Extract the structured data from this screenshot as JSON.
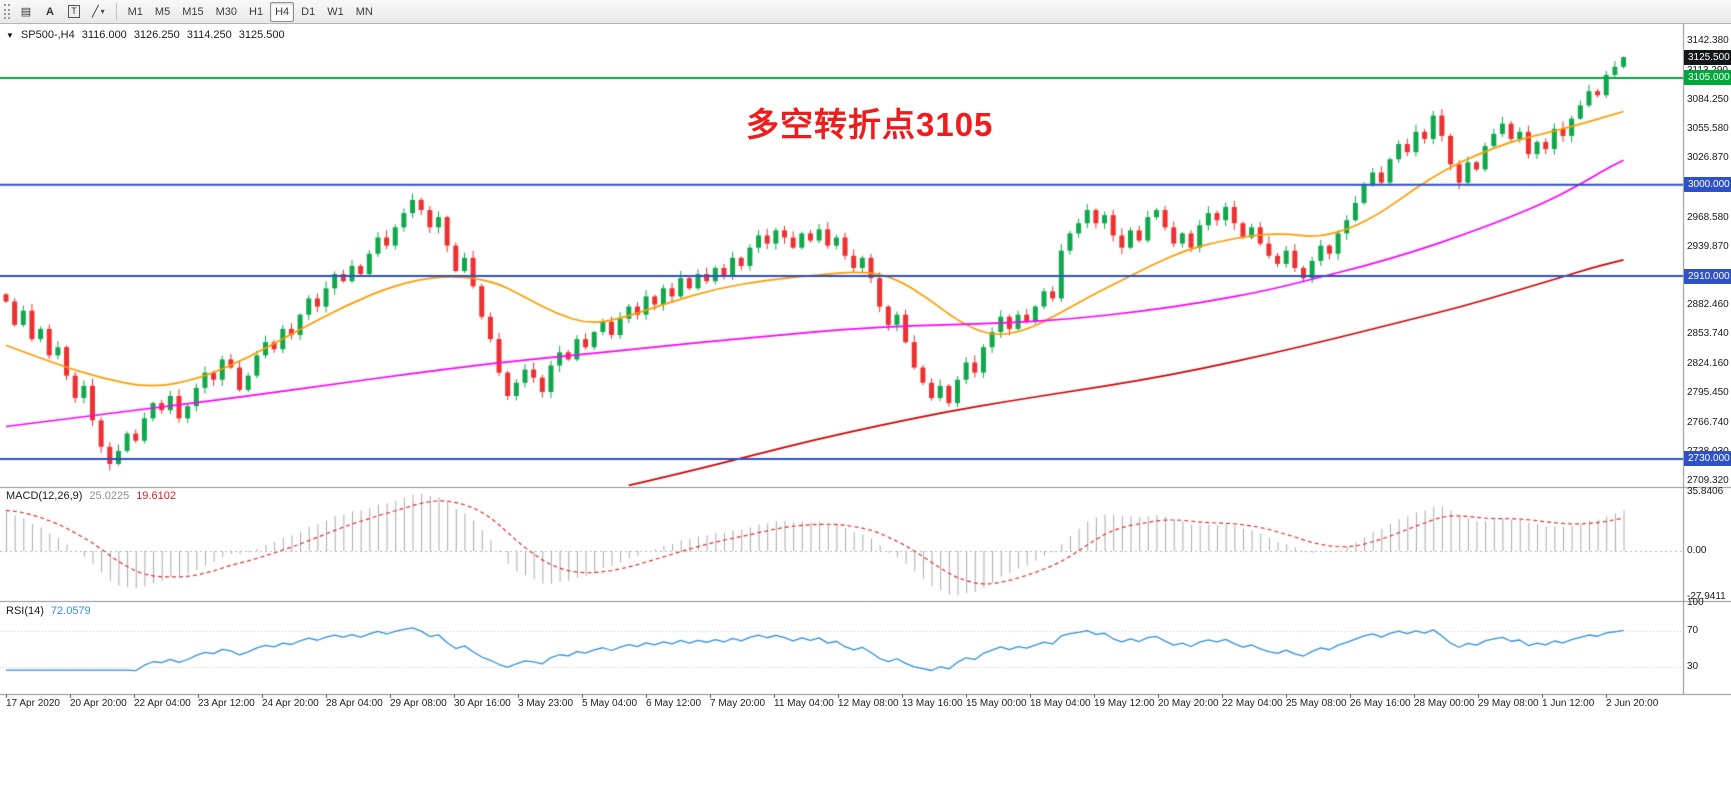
{
  "toolbar": {
    "tools": [
      {
        "name": "chart-grid",
        "glyph": "▤"
      },
      {
        "name": "cursor-tool",
        "glyph": "A"
      },
      {
        "name": "text-tool",
        "glyph": "T"
      },
      {
        "name": "line-tools",
        "glyph": "╱"
      },
      {
        "name": "line-tools-dropdown",
        "glyph": "▾"
      }
    ],
    "timeframes": [
      "M1",
      "M5",
      "M15",
      "M30",
      "H1",
      "H4",
      "D1",
      "W1",
      "MN"
    ],
    "active_timeframe": "H4"
  },
  "chart": {
    "header": {
      "collapse_icon": "▼",
      "symbol": "SP500-,H4",
      "open": "3116.000",
      "high": "3126.250",
      "low": "3114.250",
      "close": "3125.500"
    },
    "annotation": {
      "text": "多空转折点3105",
      "color": "#ee1c1c"
    },
    "price_axis_ticks": [
      "3142.380",
      "3113.290",
      "3084.250",
      "3055.580",
      "3026.870",
      "2998.170",
      "2968.580",
      "2939.870",
      "2911.160",
      "2882.460",
      "2853.740",
      "2824.160",
      "2795.450",
      "2766.740",
      "2738.030",
      "2709.320"
    ],
    "price_badges": [
      {
        "label": "3125.500",
        "price": 3125.5,
        "bg": "#15171b"
      },
      {
        "label": "3105.000",
        "price": 3105,
        "bg": "#00a83c"
      },
      {
        "label": "3000.000",
        "price": 3000,
        "bg": "#2e51c8"
      },
      {
        "label": "2910.000",
        "price": 2910,
        "bg": "#2e51c8"
      },
      {
        "label": "2730.000",
        "price": 2730,
        "bg": "#2e51c8"
      }
    ],
    "time_axis": [
      "17 Apr 2020",
      "20 Apr 20:00",
      "22 Apr 04:00",
      "23 Apr 12:00",
      "24 Apr 20:00",
      "28 Apr 04:00",
      "29 Apr 08:00",
      "30 Apr 16:00",
      "3 May 23:00",
      "5 May 04:00",
      "6 May 12:00",
      "7 May 20:00",
      "11 May 04:00",
      "12 May 08:00",
      "13 May 16:00",
      "15 May 00:00",
      "18 May 04:00",
      "19 May 12:00",
      "20 May 20:00",
      "22 May 04:00",
      "25 May 08:00",
      "26 May 16:00",
      "28 May 00:00",
      "29 May 08:00",
      "1 Jun 12:00",
      "2 Jun 20:00"
    ]
  },
  "indicators": {
    "macd": {
      "label": "MACD(12,26,9)",
      "value_main": "25.0225",
      "value_signal": "19.6102",
      "axis_max": "35.8406",
      "axis_zero": "0.00",
      "axis_min": "-27.9411",
      "histogram_color": "#ababab",
      "signal_color": "#e03333"
    },
    "rsi": {
      "label": "RSI(14)",
      "value": "72.0579",
      "axis": [
        "100",
        "70",
        "30"
      ],
      "levels": [
        70,
        30
      ],
      "line_color": "#2f90e0"
    }
  },
  "chart_data": {
    "type": "candlestick",
    "symbol": "SP500-",
    "timeframe": "H4",
    "ylim": [
      2709.32,
      3142.38
    ],
    "current": {
      "open": 3116.0,
      "high": 3126.25,
      "low": 3114.25,
      "close": 3125.5
    },
    "candle_up_color": "#0fa94c",
    "candle_down_color": "#ee3030",
    "closes": [
      2885,
      2862,
      2876,
      2848,
      2858,
      2832,
      2840,
      2812,
      2790,
      2802,
      2768,
      2742,
      2725,
      2738,
      2755,
      2748,
      2770,
      2785,
      2778,
      2792,
      2770,
      2782,
      2800,
      2815,
      2808,
      2828,
      2820,
      2798,
      2812,
      2832,
      2845,
      2838,
      2858,
      2852,
      2872,
      2888,
      2880,
      2898,
      2912,
      2905,
      2920,
      2912,
      2932,
      2948,
      2940,
      2958,
      2972,
      2985,
      2975,
      2958,
      2968,
      2940,
      2915,
      2928,
      2900,
      2870,
      2848,
      2815,
      2792,
      2805,
      2818,
      2810,
      2796,
      2822,
      2835,
      2828,
      2848,
      2840,
      2855,
      2865,
      2852,
      2868,
      2880,
      2872,
      2890,
      2882,
      2898,
      2890,
      2908,
      2898,
      2912,
      2905,
      2918,
      2910,
      2928,
      2920,
      2938,
      2950,
      2942,
      2955,
      2948,
      2938,
      2952,
      2945,
      2956,
      2940,
      2948,
      2930,
      2918,
      2928,
      2908,
      2880,
      2862,
      2872,
      2845,
      2820,
      2805,
      2790,
      2802,
      2785,
      2808,
      2825,
      2815,
      2840,
      2855,
      2870,
      2858,
      2872,
      2865,
      2880,
      2895,
      2888,
      2935,
      2952,
      2962,
      2975,
      2962,
      2970,
      2950,
      2938,
      2955,
      2945,
      2968,
      2975,
      2958,
      2942,
      2952,
      2938,
      2960,
      2972,
      2965,
      2978,
      2962,
      2948,
      2958,
      2942,
      2930,
      2922,
      2935,
      2918,
      2908,
      2925,
      2940,
      2932,
      2952,
      2965,
      2982,
      3000,
      3012,
      3002,
      3025,
      3040,
      3032,
      3052,
      3045,
      3068,
      3048,
      3020,
      3002,
      3022,
      3015,
      3038,
      3050,
      3060,
      3045,
      3052,
      3030,
      3042,
      3035,
      3055,
      3048,
      3065,
      3078,
      3092,
      3088,
      3108,
      3116,
      3125.5
    ],
    "hlines": [
      {
        "price": 3105,
        "color": "#00a83c"
      },
      {
        "price": 3000,
        "color": "#2e51c8"
      },
      {
        "price": 2910,
        "color": "#2e51c8"
      },
      {
        "price": 2730,
        "color": "#2e51c8"
      }
    ],
    "moving_averages": [
      {
        "name": "ma-fast",
        "color": "#ff9c00",
        "points": [
          [
            0,
            2842
          ],
          [
            0.03,
            2824
          ],
          [
            0.06,
            2809
          ],
          [
            0.09,
            2800
          ],
          [
            0.12,
            2809
          ],
          [
            0.15,
            2830
          ],
          [
            0.18,
            2856
          ],
          [
            0.21,
            2881
          ],
          [
            0.24,
            2901
          ],
          [
            0.27,
            2911
          ],
          [
            0.3,
            2906
          ],
          [
            0.32,
            2890
          ],
          [
            0.34,
            2873
          ],
          [
            0.36,
            2863
          ],
          [
            0.38,
            2868
          ],
          [
            0.41,
            2884
          ],
          [
            0.44,
            2898
          ],
          [
            0.47,
            2906
          ],
          [
            0.5,
            2911
          ],
          [
            0.53,
            2915
          ],
          [
            0.55,
            2908
          ],
          [
            0.57,
            2888
          ],
          [
            0.59,
            2864
          ],
          [
            0.61,
            2851
          ],
          [
            0.63,
            2856
          ],
          [
            0.65,
            2872
          ],
          [
            0.67,
            2890
          ],
          [
            0.69,
            2906
          ],
          [
            0.71,
            2922
          ],
          [
            0.73,
            2936
          ],
          [
            0.75,
            2944
          ],
          [
            0.77,
            2950
          ],
          [
            0.79,
            2952
          ],
          [
            0.81,
            2948
          ],
          [
            0.83,
            2956
          ],
          [
            0.85,
            2972
          ],
          [
            0.87,
            2995
          ],
          [
            0.89,
            3015
          ],
          [
            0.91,
            3030
          ],
          [
            0.93,
            3042
          ],
          [
            0.95,
            3050
          ],
          [
            0.97,
            3058
          ],
          [
            1,
            3072
          ]
        ]
      },
      {
        "name": "ma-mid",
        "color": "#ff00ff",
        "points": [
          [
            0,
            2762
          ],
          [
            0.05,
            2772
          ],
          [
            0.1,
            2782
          ],
          [
            0.15,
            2792
          ],
          [
            0.2,
            2803
          ],
          [
            0.25,
            2814
          ],
          [
            0.3,
            2824
          ],
          [
            0.35,
            2832
          ],
          [
            0.4,
            2840
          ],
          [
            0.45,
            2848
          ],
          [
            0.5,
            2855
          ],
          [
            0.54,
            2860
          ],
          [
            0.58,
            2862
          ],
          [
            0.62,
            2864
          ],
          [
            0.66,
            2868
          ],
          [
            0.7,
            2875
          ],
          [
            0.74,
            2884
          ],
          [
            0.78,
            2896
          ],
          [
            0.81,
            2908
          ],
          [
            0.84,
            2920
          ],
          [
            0.87,
            2934
          ],
          [
            0.9,
            2950
          ],
          [
            0.93,
            2968
          ],
          [
            0.955,
            2985
          ],
          [
            0.975,
            3002
          ],
          [
            0.99,
            3016
          ],
          [
            1,
            3024
          ]
        ]
      },
      {
        "name": "ma-slow",
        "color": "#d40000",
        "points": [
          [
            0.385,
            2704
          ],
          [
            0.42,
            2717
          ],
          [
            0.46,
            2733
          ],
          [
            0.5,
            2749
          ],
          [
            0.54,
            2763
          ],
          [
            0.58,
            2776
          ],
          [
            0.62,
            2787
          ],
          [
            0.66,
            2797
          ],
          [
            0.7,
            2807
          ],
          [
            0.74,
            2819
          ],
          [
            0.78,
            2833
          ],
          [
            0.82,
            2848
          ],
          [
            0.86,
            2864
          ],
          [
            0.9,
            2880
          ],
          [
            0.93,
            2894
          ],
          [
            0.96,
            2908
          ],
          [
            0.98,
            2918
          ],
          [
            1,
            2926
          ]
        ]
      }
    ]
  }
}
